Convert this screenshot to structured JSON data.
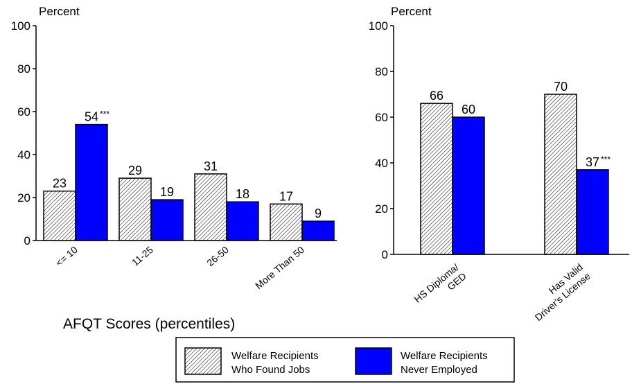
{
  "chart_data": [
    {
      "type": "bar",
      "title": "",
      "xlabel": "AFQT Scores (percentiles)",
      "ylabel": "Percent",
      "ylim": [
        0,
        100
      ],
      "yticks": [
        "0",
        "20",
        "40",
        "60",
        "80",
        "100"
      ],
      "categories": [
        "<= 10",
        "11-25",
        "26-50",
        "More Than 50"
      ],
      "series": [
        {
          "name": "Welfare Recipients Who Found Jobs",
          "values": [
            23,
            29,
            31,
            17
          ]
        },
        {
          "name": "Welfare Recipients Never Employed",
          "values": [
            54,
            19,
            18,
            9
          ]
        }
      ],
      "bar_labels": [
        [
          "23",
          "29",
          "31",
          "17"
        ],
        [
          "54",
          "19",
          "18",
          "9"
        ]
      ],
      "significance": [
        [
          "",
          "",
          "",
          ""
        ],
        [
          "***",
          "",
          "",
          ""
        ]
      ]
    },
    {
      "type": "bar",
      "title": "",
      "xlabel": "",
      "ylabel": "Percent",
      "ylim": [
        0,
        100
      ],
      "yticks": [
        "0",
        "20",
        "40",
        "60",
        "80",
        "100"
      ],
      "categories": [
        [
          "HS Diploma/",
          "GED"
        ],
        [
          "Has Valid",
          "Driver's License"
        ]
      ],
      "series": [
        {
          "name": "Welfare Recipients Who Found Jobs",
          "values": [
            66,
            70
          ]
        },
        {
          "name": "Welfare Recipients Never Employed",
          "values": [
            60,
            37
          ]
        }
      ],
      "bar_labels": [
        [
          "66",
          "70"
        ],
        [
          "60",
          "37"
        ]
      ],
      "significance": [
        [
          "",
          ""
        ],
        [
          "",
          "***"
        ]
      ]
    }
  ],
  "legend": {
    "placement": "bottom-center",
    "items": [
      {
        "line1": "Welfare Recipients",
        "line2": "Who Found Jobs",
        "style": "hatched",
        "color": "#ffffff"
      },
      {
        "line1": "Welfare Recipients",
        "line2": "Never Employed",
        "style": "solid",
        "color": "#0000ff"
      }
    ]
  },
  "colors": {
    "never_employed": "#0000ff",
    "found_jobs_fill": "#ffffff",
    "hatch": "#000000",
    "axis": "#000000"
  }
}
